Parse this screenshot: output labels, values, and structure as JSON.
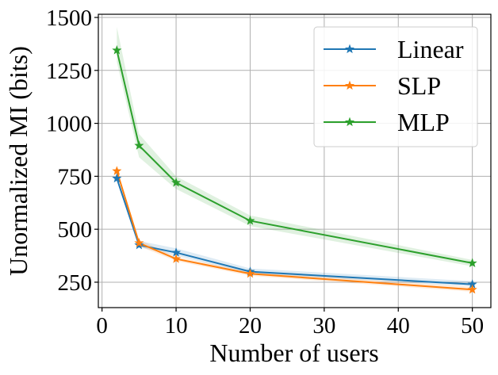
{
  "chart_data": {
    "type": "line",
    "title": "",
    "xlabel": "Number of users",
    "ylabel": "Unormalized MI (bits)",
    "x": [
      2,
      5,
      10,
      20,
      50
    ],
    "xlim": [
      -0.5,
      52.5
    ],
    "ylim": [
      130,
      1515
    ],
    "xticks": [
      0,
      10,
      20,
      30,
      40,
      50
    ],
    "yticks": [
      250,
      500,
      750,
      1000,
      1250,
      1500
    ],
    "grid": true,
    "legend_position": "top-right",
    "series": [
      {
        "name": "Linear",
        "color": "#1f77b4",
        "marker": "star",
        "values": [
          740,
          425,
          390,
          300,
          240
        ],
        "band_lower": [
          730,
          415,
          375,
          290,
          230
        ],
        "band_upper": [
          750,
          445,
          410,
          315,
          255
        ]
      },
      {
        "name": "SLP",
        "color": "#ff7f0e",
        "marker": "star",
        "values": [
          775,
          435,
          360,
          290,
          215
        ],
        "band_lower": [
          765,
          420,
          350,
          280,
          205
        ],
        "band_upper": [
          785,
          450,
          370,
          300,
          228
        ]
      },
      {
        "name": "MLP",
        "color": "#2ca02c",
        "marker": "star",
        "values": [
          1345,
          895,
          720,
          540,
          340
        ],
        "band_lower": [
          1290,
          840,
          690,
          515,
          325
        ],
        "band_upper": [
          1455,
          950,
          750,
          565,
          355
        ]
      }
    ]
  }
}
